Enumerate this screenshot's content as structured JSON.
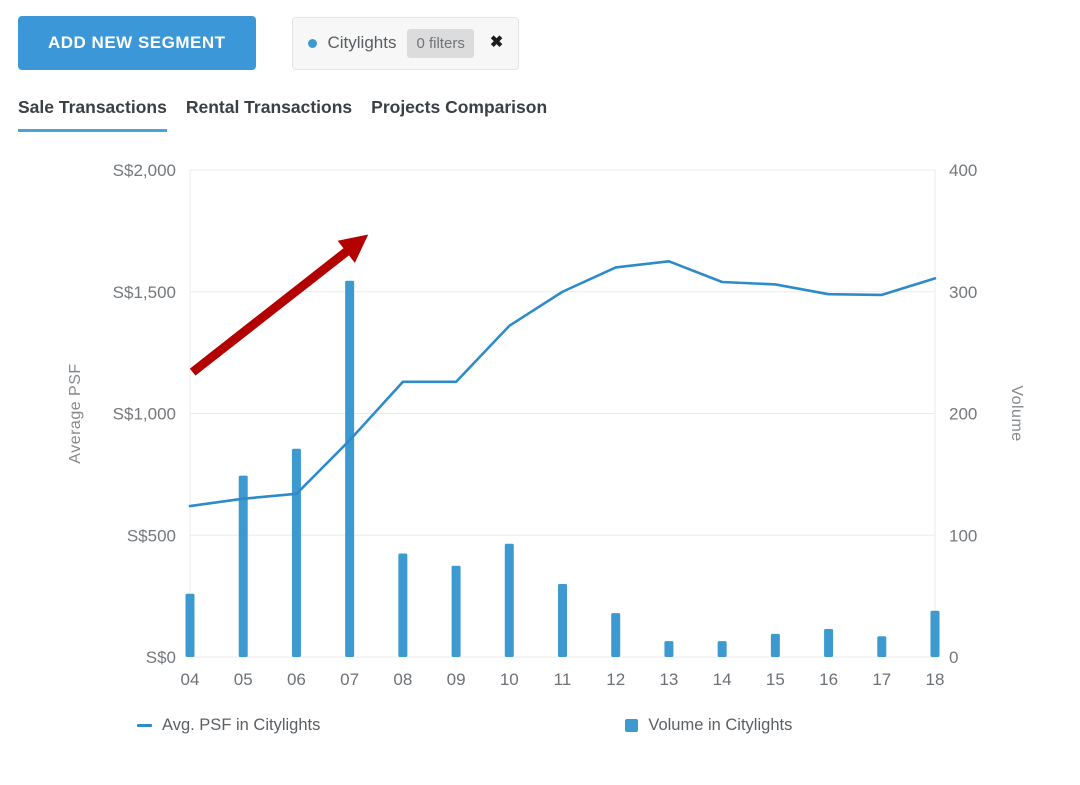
{
  "header": {
    "add_segment_button": "ADD NEW SEGMENT",
    "segment_chip": {
      "name": "Citylights",
      "filters_label": "0 filters",
      "close_icon": "✖"
    }
  },
  "tabs": [
    {
      "label": "Sale Transactions",
      "active": true
    },
    {
      "label": "Rental Transactions",
      "active": false
    },
    {
      "label": "Projects Comparison",
      "active": false
    }
  ],
  "colors": {
    "accent_blue": "#3b97d8",
    "series_blue": "#3d9ad1",
    "line_blue": "#2e8bc9",
    "arrow_red": "#b30000",
    "grid": "#ebebeb"
  },
  "chart_data": {
    "type": "line+bar",
    "categories": [
      "04",
      "05",
      "06",
      "07",
      "08",
      "09",
      "10",
      "11",
      "12",
      "13",
      "14",
      "15",
      "16",
      "17",
      "18"
    ],
    "series": [
      {
        "name": "Avg. PSF in Citylights",
        "type": "line",
        "axis": "left",
        "color": "#2e8bc9",
        "values": [
          620,
          650,
          670,
          890,
          1130,
          1130,
          1360,
          1500,
          1600,
          1625,
          1540,
          1530,
          1490,
          1487,
          1555
        ]
      },
      {
        "name": "Volume in Citylights",
        "type": "bar",
        "axis": "right",
        "color": "#3d9ad1",
        "values": [
          52,
          149,
          171,
          309,
          85,
          75,
          93,
          60,
          36,
          13,
          13,
          19,
          23,
          17,
          38
        ]
      }
    ],
    "left_axis": {
      "label": "Average PSF",
      "min": 0,
      "max": 2000,
      "ticks": [
        "S$0",
        "S$500",
        "S$1,000",
        "S$1,500",
        "S$2,000"
      ]
    },
    "right_axis": {
      "label": "Volume",
      "min": 0,
      "max": 400,
      "ticks": [
        "0",
        "100",
        "200",
        "300",
        "400"
      ]
    },
    "annotation": {
      "type": "arrow",
      "color": "#b30000",
      "from_index": 0.05,
      "from_value": 1170,
      "to_index": 3.35,
      "to_value": 1735
    },
    "grid": true,
    "legend_position": "bottom"
  }
}
